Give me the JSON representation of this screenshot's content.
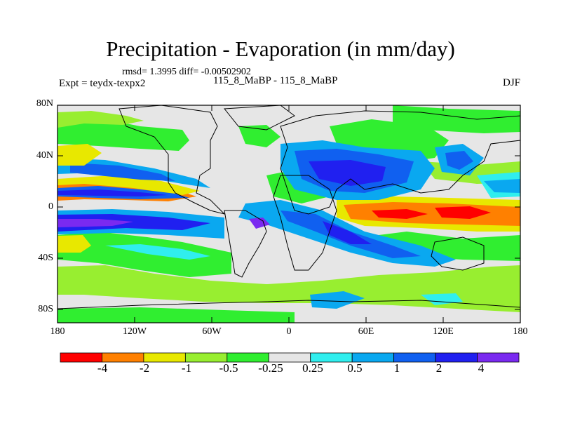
{
  "title": "Precipitation - Evaporation (in mm/day)",
  "stats": "rmsd= 1.3995 diff= -0.00502902",
  "experiment": "Expt = teydx-texpx2",
  "period": "115_8_MaBP - 115_8_MaBP",
  "season": "DJF",
  "latitude_labels": [
    "80N",
    "40N",
    "0",
    "40S",
    "80S"
  ],
  "longitude_labels": [
    "180",
    "120W",
    "60W",
    "0",
    "60E",
    "120E",
    "180"
  ],
  "colorbar": {
    "labels": [
      "-4",
      "-2",
      "-1",
      "-0.5",
      "-0.25",
      "0.25",
      "0.5",
      "1",
      "2",
      "4"
    ],
    "colors": [
      "#ff0000",
      "#ff8000",
      "#e8e800",
      "#98ee30",
      "#30ee30",
      "#e6e6e6",
      "#30eeee",
      "#0aa8f0",
      "#1060f0",
      "#2020f0",
      "#7a2af0"
    ]
  },
  "field_colors": {
    "red": "#ff0000",
    "orange": "#ff8000",
    "yellow": "#e8e800",
    "lightgreen": "#98ee30",
    "green": "#30ee30",
    "neutral": "#e6e6e6",
    "cyan": "#30eeee",
    "lightblue": "#0aa8f0",
    "blue": "#1060f0",
    "darkblue": "#2020f0",
    "purple": "#7a2af0"
  }
}
